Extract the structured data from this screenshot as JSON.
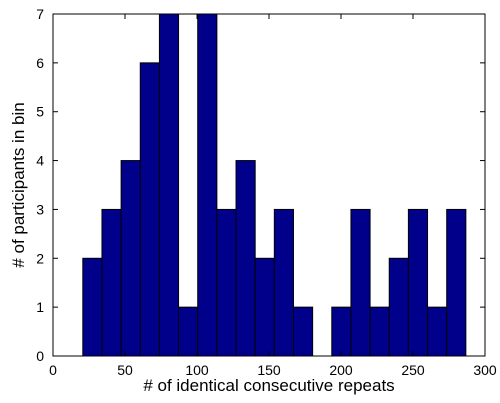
{
  "chart_data": {
    "type": "bar",
    "title": "",
    "xlabel": "# of identical consecutive repeats",
    "ylabel": "# of participants in bin",
    "xlim": [
      0,
      300
    ],
    "ylim": [
      0,
      7
    ],
    "xticks": [
      "0",
      "50",
      "100",
      "150",
      "200",
      "250",
      "300"
    ],
    "yticks": [
      "0",
      "1",
      "2",
      "3",
      "4",
      "5",
      "6",
      "7"
    ],
    "grid": false,
    "bin_width": 13.3,
    "bins": [
      {
        "x0": 20.7,
        "value": 2
      },
      {
        "x0": 34.0,
        "value": 3
      },
      {
        "x0": 47.3,
        "value": 4
      },
      {
        "x0": 60.6,
        "value": 6
      },
      {
        "x0": 73.9,
        "value": 7
      },
      {
        "x0": 87.2,
        "value": 1
      },
      {
        "x0": 100.5,
        "value": 7
      },
      {
        "x0": 113.8,
        "value": 3
      },
      {
        "x0": 127.1,
        "value": 4
      },
      {
        "x0": 140.4,
        "value": 2
      },
      {
        "x0": 153.7,
        "value": 3
      },
      {
        "x0": 167.0,
        "value": 1
      },
      {
        "x0": 180.3,
        "value": 0
      },
      {
        "x0": 193.6,
        "value": 1
      },
      {
        "x0": 206.9,
        "value": 3
      },
      {
        "x0": 220.2,
        "value": 1
      },
      {
        "x0": 233.5,
        "value": 2
      },
      {
        "x0": 246.8,
        "value": 3
      },
      {
        "x0": 260.1,
        "value": 1
      },
      {
        "x0": 273.4,
        "value": 3
      }
    ],
    "bar_color": "#00008b",
    "bar_edge_color": "#000000"
  }
}
